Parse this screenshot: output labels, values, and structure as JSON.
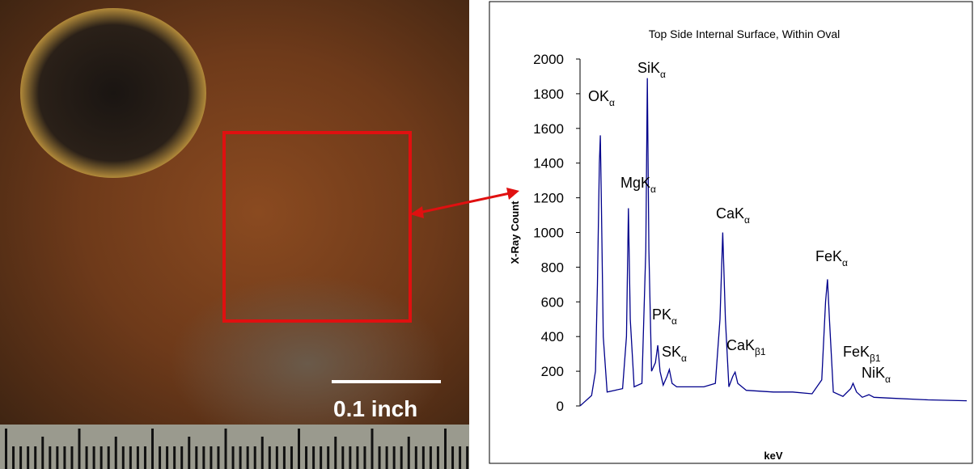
{
  "photo": {
    "scale_label": "0.1 inch"
  },
  "chart_data": {
    "type": "line",
    "title": "Top Side Internal Surface, Within Oval",
    "x_label": "keV",
    "y_label": "X-Ray Count",
    "xlim": [
      0,
      10
    ],
    "ylim": [
      0,
      2000
    ],
    "yticks": [
      0,
      200,
      400,
      600,
      800,
      1000,
      1200,
      1400,
      1600,
      1800,
      2000
    ],
    "grid": false,
    "series": [
      {
        "color": "#00008b",
        "x": [
          0,
          0.1,
          0.2,
          0.3,
          0.4,
          0.45,
          0.5,
          0.525,
          0.55,
          0.6,
          0.7,
          0.9,
          1.1,
          1.2,
          1.25,
          1.3,
          1.4,
          1.6,
          1.7,
          1.74,
          1.78,
          1.85,
          1.95,
          2.01,
          2.07,
          2.15,
          2.25,
          2.31,
          2.38,
          2.5,
          2.8,
          3.2,
          3.5,
          3.62,
          3.69,
          3.76,
          3.85,
          3.95,
          4.01,
          4.08,
          4.3,
          5.0,
          5.5,
          6.0,
          6.25,
          6.35,
          6.4,
          6.45,
          6.55,
          6.8,
          7.0,
          7.06,
          7.15,
          7.3,
          7.47,
          7.6,
          8.0,
          9.0,
          10.0
        ],
        "values": [
          0,
          20,
          40,
          60,
          200,
          700,
          1400,
          1560,
          1200,
          400,
          80,
          90,
          100,
          400,
          1140,
          500,
          110,
          130,
          900,
          1890,
          900,
          200,
          250,
          350,
          200,
          120,
          170,
          210,
          130,
          110,
          110,
          110,
          130,
          500,
          1000,
          500,
          110,
          170,
          195,
          130,
          90,
          80,
          80,
          70,
          150,
          600,
          730,
          500,
          80,
          55,
          100,
          130,
          80,
          50,
          65,
          50,
          45,
          35,
          30
        ]
      }
    ],
    "annotations": [
      {
        "text": "OK",
        "sub": "α"
      },
      {
        "text": "SiK",
        "sub": "α"
      },
      {
        "text": "MgK",
        "sub": "α"
      },
      {
        "text": "CaK",
        "sub": "α"
      },
      {
        "text": "FeK",
        "sub": "α"
      },
      {
        "text": "PK",
        "sub": "α"
      },
      {
        "text": "SK",
        "sub": "α"
      },
      {
        "text": "CaK",
        "sub": "β1"
      },
      {
        "text": "FeK",
        "sub": "β1"
      },
      {
        "text": "NiK",
        "sub": "α"
      }
    ]
  }
}
